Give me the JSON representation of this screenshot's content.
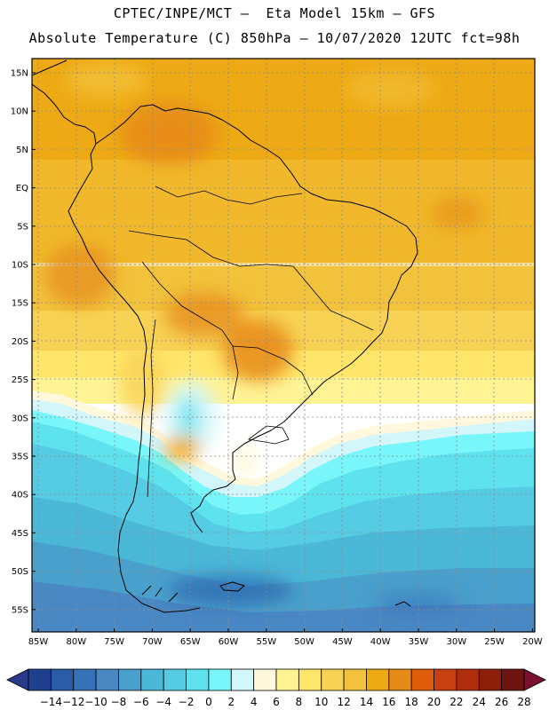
{
  "header": {
    "line1": "CPTEC/INPE/MCT –  Eta Model 15km – GFS",
    "line2": "Absolute Temperature (C) 850hPa – 10/07/2020 12UTC fct=98h"
  },
  "map": {
    "lat_labels": [
      "15N",
      "10N",
      "5N",
      "EQ",
      "5S",
      "10S",
      "15S",
      "20S",
      "25S",
      "30S",
      "35S",
      "40S",
      "45S",
      "50S",
      "55S"
    ],
    "lon_labels": [
      "85W",
      "80W",
      "75W",
      "70W",
      "65W",
      "60W",
      "55W",
      "50W",
      "45W",
      "40W",
      "35W",
      "30W",
      "25W",
      "20W"
    ]
  },
  "colorbar": {
    "labels": [
      "-14",
      "-12",
      "-10",
      "-8",
      "-6",
      "-4",
      "-2",
      "0",
      "2",
      "4",
      "6",
      "8",
      "10",
      "12",
      "14",
      "16",
      "18",
      "20",
      "22",
      "24",
      "26",
      "28"
    ],
    "colors": [
      "#1f3f8f",
      "#2a5ca8",
      "#3572b8",
      "#4a88c4",
      "#4aa0cc",
      "#4cb8d8",
      "#55cce4",
      "#5ee2ee",
      "#78f6fa",
      "#d2f6fa",
      "#fff8dc",
      "#fff394",
      "#ffe66a",
      "#f8d254",
      "#f2c23c",
      "#eeaa14",
      "#e68a18",
      "#de5e0c",
      "#c84010",
      "#b02e0c",
      "#8c1e0a",
      "#6e1410"
    ],
    "end_low": "#2a3a8a",
    "end_high": "#7a1030"
  }
}
